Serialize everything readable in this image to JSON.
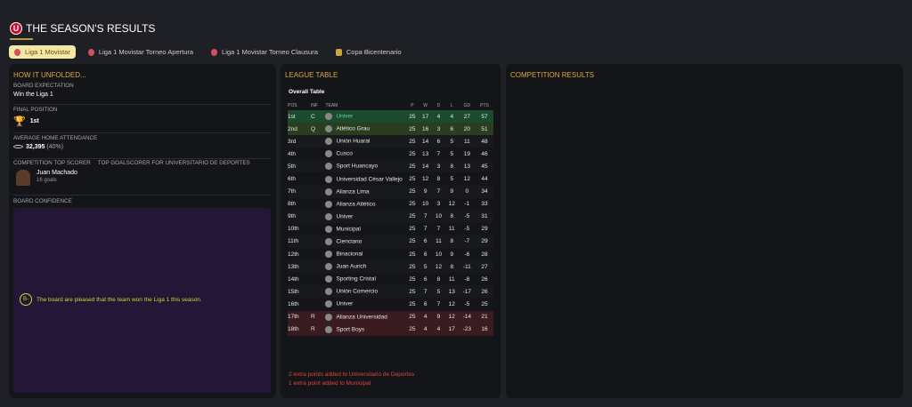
{
  "header": {
    "title": "THE SEASON'S RESULTS",
    "logo_letter": "U"
  },
  "tabs": [
    {
      "label": "Liga 1 Movistar",
      "active": true,
      "icon": "league-icon"
    },
    {
      "label": "Liga 1 Movistar Torneo Apertura",
      "icon": "league-icon"
    },
    {
      "label": "Liga 1 Movistar Torneo Clausura",
      "icon": "league-icon"
    },
    {
      "label": "Copa Bicentenario",
      "icon": "cup-icon"
    }
  ],
  "left": {
    "heading": "HOW IT UNFOLDED...",
    "board_expectation_label": "BOARD EXPECTATION",
    "board_expectation": "Win the Liga 1",
    "final_position_label": "FINAL POSITION",
    "final_position": "1st",
    "attendance_label": "AVERAGE HOME ATTENDANCE",
    "attendance": "32,395",
    "attendance_pct": "(40%)",
    "scorer_label": "TOP GOALSCORER FOR UNIVERSITARIO DE DEPORTES",
    "scorer_label_overlap": "COMPETITION TOP SCORER",
    "scorer_name": "Juan Machado",
    "scorer_goals": "16 goals",
    "confidence_label": "BOARD CONFIDENCE",
    "grade": "B-",
    "confidence_text": "The board are pleased that the team won the Liga 1 this season."
  },
  "league": {
    "heading": "LEAGUE TABLE",
    "subtitle": "Overall Table",
    "columns": [
      "POS",
      "INF",
      "TEAM",
      "P",
      "W",
      "D",
      "L",
      "GD",
      "PTS"
    ],
    "rows": [
      [
        "1st",
        "C",
        "Univer",
        "25",
        "17",
        "4",
        "4",
        "27",
        "57"
      ],
      [
        "2nd",
        "Q",
        "Atlético Grau",
        "25",
        "16",
        "3",
        "6",
        "20",
        "51"
      ],
      [
        "3rd",
        "",
        "Unión Huaral",
        "25",
        "14",
        "6",
        "5",
        "11",
        "48"
      ],
      [
        "4th",
        "",
        "Cusco",
        "25",
        "13",
        "7",
        "5",
        "19",
        "46"
      ],
      [
        "5th",
        "",
        "Sport Huancayo",
        "25",
        "14",
        "3",
        "8",
        "13",
        "45"
      ],
      [
        "6th",
        "",
        "Universidad César Vallejo",
        "25",
        "12",
        "8",
        "5",
        "12",
        "44"
      ],
      [
        "7th",
        "",
        "Alianza Lima",
        "25",
        "9",
        "7",
        "9",
        "0",
        "34"
      ],
      [
        "8th",
        "",
        "Alianza Atlético",
        "25",
        "10",
        "3",
        "12",
        "-1",
        "33"
      ],
      [
        "9th",
        "",
        "Univer",
        "25",
        "7",
        "10",
        "8",
        "-5",
        "31"
      ],
      [
        "10th",
        "",
        "Municipal",
        "25",
        "7",
        "7",
        "11",
        "-5",
        "29"
      ],
      [
        "11th",
        "",
        "Cienciano",
        "25",
        "6",
        "11",
        "8",
        "-7",
        "29"
      ],
      [
        "12th",
        "",
        "Binacional",
        "25",
        "6",
        "10",
        "9",
        "-6",
        "28"
      ],
      [
        "13th",
        "",
        "Juan Aurich",
        "25",
        "5",
        "12",
        "8",
        "-11",
        "27"
      ],
      [
        "14th",
        "",
        "Sporting Cristal",
        "25",
        "6",
        "8",
        "11",
        "-8",
        "26"
      ],
      [
        "15th",
        "",
        "Unión Comercio",
        "25",
        "7",
        "5",
        "13",
        "-17",
        "26"
      ],
      [
        "16th",
        "",
        "Univer",
        "25",
        "6",
        "7",
        "12",
        "-5",
        "25"
      ],
      [
        "17th",
        "R",
        "Alianza Universidad",
        "25",
        "4",
        "9",
        "12",
        "-14",
        "21"
      ],
      [
        "18th",
        "R",
        "Sport Boys",
        "25",
        "4",
        "4",
        "17",
        "-23",
        "16"
      ]
    ],
    "notes": [
      "2 extra points added to Universitario de Deportes",
      "1 extra point added to Municipal"
    ]
  },
  "right": {
    "heading": "COMPETITION RESULTS"
  },
  "colors": {
    "accent": "#d9a93a",
    "champion": "#1c4a2e",
    "qualify": "#2a3e1f",
    "relegation": "#3a1b1f",
    "confidence_bg": "#231636"
  }
}
